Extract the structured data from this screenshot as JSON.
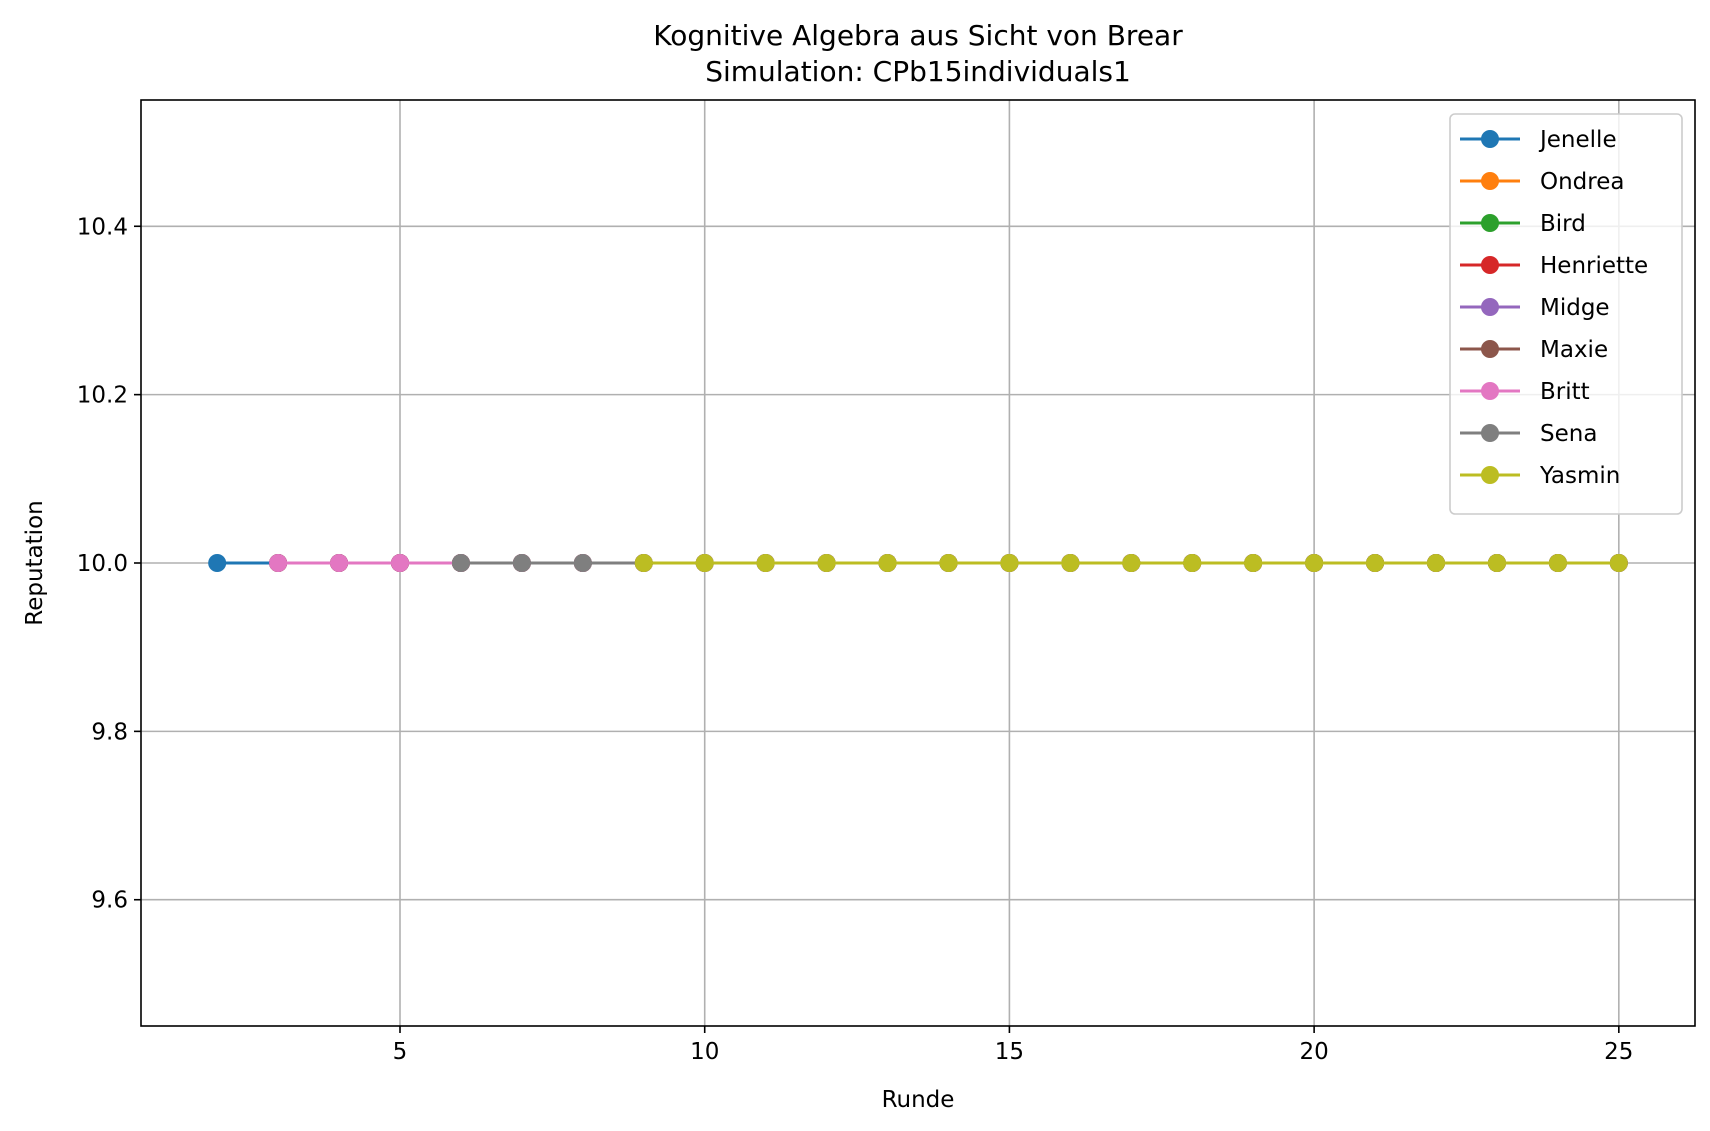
{
  "chart_data": {
    "type": "line",
    "title": "Kognitive Algebra aus Sicht von Brear",
    "subtitle": "Simulation: CPb15individuals1",
    "xlabel": "Runde",
    "ylabel": "Reputation",
    "xlim": [
      0.75,
      26.25
    ],
    "ylim": [
      9.45,
      10.55
    ],
    "xticks": [
      5,
      10,
      15,
      20,
      25
    ],
    "yticks": [
      9.6,
      9.8,
      10.0,
      10.2,
      10.4
    ],
    "ytick_labels": [
      "9.6",
      "9.8",
      "10.0",
      "10.2",
      "10.4"
    ],
    "grid": true,
    "legend_position": "top-right",
    "series": [
      {
        "name": "Jenelle",
        "color": "#1f77b4",
        "x": [
          2,
          3,
          4,
          5,
          6,
          7,
          8,
          9,
          10,
          11,
          12,
          13,
          14,
          15,
          16,
          17,
          18,
          19,
          20,
          21,
          22,
          23,
          24,
          25
        ],
        "values": [
          10,
          10,
          10,
          10,
          10,
          10,
          10,
          10,
          10,
          10,
          10,
          10,
          10,
          10,
          10,
          10,
          10,
          10,
          10,
          10,
          10,
          10,
          10,
          10
        ]
      },
      {
        "name": "Ondrea",
        "color": "#ff7f0e",
        "x": [
          3,
          4,
          5,
          6,
          7,
          8,
          9,
          10,
          11,
          12,
          13,
          14,
          15,
          16,
          17,
          18,
          19,
          20,
          21,
          22,
          23,
          24,
          25
        ],
        "values": [
          10,
          10,
          10,
          10,
          10,
          10,
          10,
          10,
          10,
          10,
          10,
          10,
          10,
          10,
          10,
          10,
          10,
          10,
          10,
          10,
          10,
          10,
          10
        ]
      },
      {
        "name": "Bird",
        "color": "#2ca02c",
        "x": [
          3,
          4,
          5,
          6,
          7,
          8,
          9,
          10,
          11,
          12,
          13,
          14,
          15,
          16,
          17,
          18,
          19,
          20,
          21,
          22,
          23,
          24,
          25
        ],
        "values": [
          10,
          10,
          10,
          10,
          10,
          10,
          10,
          10,
          10,
          10,
          10,
          10,
          10,
          10,
          10,
          10,
          10,
          10,
          10,
          10,
          10,
          10,
          10
        ]
      },
      {
        "name": "Henriette",
        "color": "#d62728",
        "x": [
          3,
          4,
          5,
          6,
          7,
          8,
          9,
          10,
          11,
          12,
          13,
          14,
          15,
          16,
          17,
          18,
          19,
          20,
          21,
          22,
          23,
          24,
          25
        ],
        "values": [
          10,
          10,
          10,
          10,
          10,
          10,
          10,
          10,
          10,
          10,
          10,
          10,
          10,
          10,
          10,
          10,
          10,
          10,
          10,
          10,
          10,
          10,
          10
        ]
      },
      {
        "name": "Midge",
        "color": "#9467bd",
        "x": [
          3,
          4,
          5,
          6,
          7,
          8,
          9,
          10,
          11,
          12,
          13,
          14,
          15,
          16,
          17,
          18,
          19,
          20,
          21,
          22,
          23,
          24,
          25
        ],
        "values": [
          10,
          10,
          10,
          10,
          10,
          10,
          10,
          10,
          10,
          10,
          10,
          10,
          10,
          10,
          10,
          10,
          10,
          10,
          10,
          10,
          10,
          10,
          10
        ]
      },
      {
        "name": "Maxie",
        "color": "#8c564b",
        "x": [
          3,
          4,
          5,
          6,
          7,
          8,
          9,
          10,
          11,
          12,
          13,
          14,
          15,
          16,
          17,
          18,
          19,
          20,
          21,
          22,
          23,
          24,
          25
        ],
        "values": [
          10,
          10,
          10,
          10,
          10,
          10,
          10,
          10,
          10,
          10,
          10,
          10,
          10,
          10,
          10,
          10,
          10,
          10,
          10,
          10,
          10,
          10,
          10
        ]
      },
      {
        "name": "Britt",
        "color": "#e377c2",
        "x": [
          3,
          4,
          5,
          6,
          7,
          8,
          9,
          10,
          11,
          12,
          13,
          14,
          15,
          16,
          17,
          18,
          19,
          20,
          21,
          22,
          23,
          24,
          25
        ],
        "values": [
          10,
          10,
          10,
          10,
          10,
          10,
          10,
          10,
          10,
          10,
          10,
          10,
          10,
          10,
          10,
          10,
          10,
          10,
          10,
          10,
          10,
          10,
          10
        ]
      },
      {
        "name": "Sena",
        "color": "#7f7f7f",
        "x": [
          6,
          7,
          8,
          9,
          10,
          11,
          12,
          13,
          14,
          15,
          16,
          17,
          18,
          19,
          20,
          21,
          22,
          23,
          24,
          25
        ],
        "values": [
          10,
          10,
          10,
          10,
          10,
          10,
          10,
          10,
          10,
          10,
          10,
          10,
          10,
          10,
          10,
          10,
          10,
          10,
          10,
          10
        ]
      },
      {
        "name": "Yasmin",
        "color": "#bcbd22",
        "x": [
          9,
          10,
          11,
          12,
          13,
          14,
          15,
          16,
          17,
          18,
          19,
          20,
          21,
          22,
          23,
          24,
          25
        ],
        "values": [
          10,
          10,
          10,
          10,
          10,
          10,
          10,
          10,
          10,
          10,
          10,
          10,
          10,
          10,
          10,
          10,
          10
        ]
      }
    ]
  }
}
